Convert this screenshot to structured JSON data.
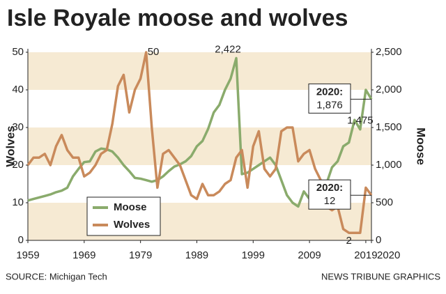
{
  "chart_data": {
    "type": "line",
    "title": "Isle Royale moose and wolves",
    "y_label": "Wolves",
    "y2_label": "Moose",
    "source": "SOURCE: Michigan Tech",
    "credit": "NEWS TRIBUNE GRAPHICS",
    "annotations": [
      "2020:",
      "2020:"
    ],
    "x": [
      1959,
      1960,
      1961,
      1962,
      1963,
      1964,
      1965,
      1966,
      1967,
      1968,
      1969,
      1970,
      1971,
      1972,
      1973,
      1974,
      1975,
      1976,
      1977,
      1978,
      1979,
      1980,
      1981,
      1982,
      1983,
      1984,
      1985,
      1986,
      1987,
      1988,
      1989,
      1990,
      1991,
      1992,
      1993,
      1994,
      1995,
      1996,
      1997,
      1998,
      1999,
      2000,
      2001,
      2002,
      2003,
      2004,
      2005,
      2006,
      2007,
      2008,
      2009,
      2010,
      2011,
      2012,
      2013,
      2014,
      2015,
      2016,
      2017,
      2018,
      2019,
      2020
    ],
    "xlim": [
      1959,
      2020
    ],
    "xticks": [
      1959,
      1969,
      1979,
      1989,
      1999,
      2009,
      2019,
      2020
    ],
    "ylim": [
      0,
      50
    ],
    "yticks": [
      0,
      10,
      20,
      30,
      40,
      50
    ],
    "y2lim": [
      0,
      2500
    ],
    "y2ticks": [
      0,
      500,
      {
        "value": 1000,
        "label": "1,000"
      },
      {
        "value": 1500,
        "label": "1,500"
      },
      {
        "value": 2000,
        "label": "2,000"
      },
      {
        "value": 2500,
        "label": "2,500"
      }
    ],
    "series": [
      {
        "name": "Moose",
        "color": "#8aab6c",
        "axis": "y2",
        "values": [
          530,
          550,
          570,
          590,
          610,
          640,
          660,
          700,
          850,
          950,
          1040,
          1050,
          1180,
          1220,
          1210,
          1180,
          1100,
          1000,
          920,
          830,
          820,
          800,
          780,
          800,
          850,
          920,
          980,
          1010,
          1050,
          1120,
          1250,
          1320,
          1480,
          1700,
          1800,
          2000,
          2150,
          2422,
          880,
          900,
          950,
          1000,
          1050,
          1100,
          1000,
          800,
          600,
          500,
          450,
          650,
          550,
          520,
          510,
          750,
          970,
          1050,
          1250,
          1300,
          1600,
          1475,
          2000,
          1876
        ],
        "value_labels": [
          null,
          null,
          null,
          null,
          null,
          null,
          null,
          null,
          null,
          null,
          null,
          null,
          null,
          null,
          null,
          null,
          null,
          null,
          null,
          null,
          null,
          null,
          null,
          null,
          null,
          null,
          null,
          null,
          null,
          null,
          null,
          null,
          null,
          null,
          null,
          null,
          null,
          "2,422",
          null,
          null,
          null,
          null,
          null,
          null,
          null,
          null,
          null,
          null,
          null,
          null,
          null,
          null,
          null,
          null,
          null,
          null,
          null,
          null,
          null,
          "1,475",
          null,
          "1,876"
        ]
      },
      {
        "name": "Wolves",
        "color": "#c98a5b",
        "values": [
          20,
          22,
          22,
          23,
          20,
          25,
          28,
          24,
          22,
          22,
          17,
          18,
          20,
          23,
          24,
          31,
          41,
          44,
          34,
          40,
          43,
          50,
          30,
          14,
          23,
          24,
          22,
          20,
          16,
          12,
          11,
          15,
          12,
          12,
          13,
          15,
          16,
          22,
          24,
          14,
          25,
          29,
          19,
          17,
          19,
          29,
          30,
          30,
          21,
          23,
          24,
          19,
          16,
          9,
          8,
          9,
          3,
          2,
          2,
          2,
          14,
          12
        ],
        "value_labels": [
          null,
          null,
          null,
          null,
          null,
          null,
          null,
          null,
          null,
          null,
          null,
          null,
          null,
          null,
          null,
          null,
          null,
          null,
          null,
          null,
          null,
          "50",
          null,
          null,
          null,
          null,
          null,
          null,
          null,
          null,
          null,
          null,
          null,
          null,
          null,
          null,
          null,
          null,
          null,
          null,
          null,
          null,
          null,
          null,
          null,
          null,
          null,
          null,
          null,
          null,
          null,
          null,
          null,
          null,
          null,
          null,
          null,
          "2",
          null,
          null,
          null,
          "12"
        ]
      }
    ]
  }
}
